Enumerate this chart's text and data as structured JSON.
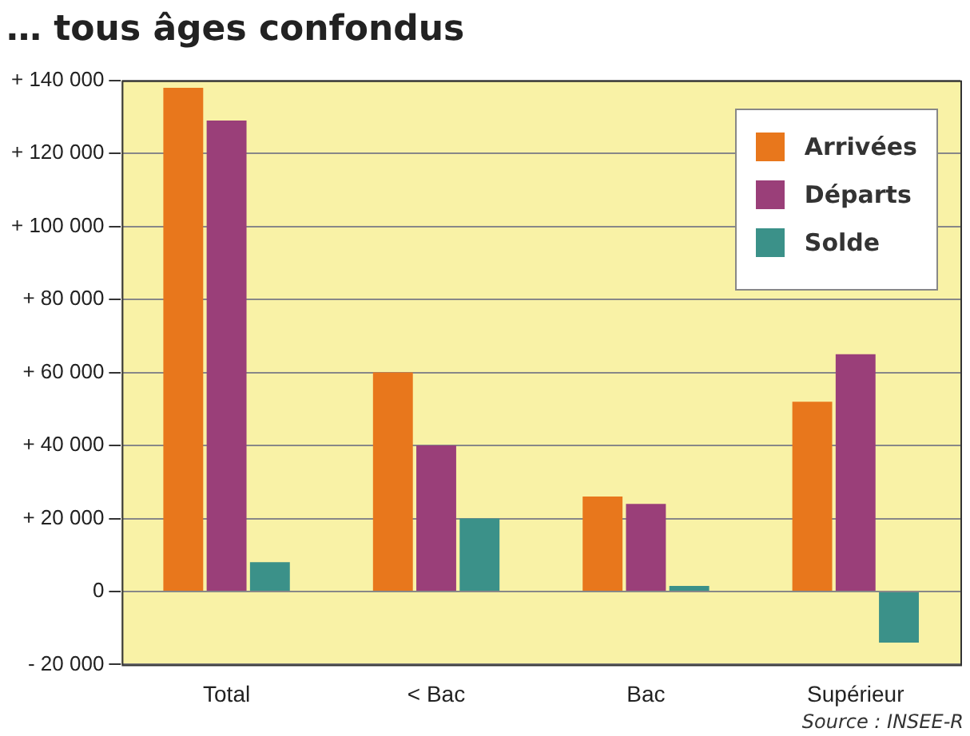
{
  "chart_data": {
    "type": "bar",
    "title": "… tous âges confondus",
    "categories": [
      "Total",
      "< Bac",
      "Bac",
      "Supérieur"
    ],
    "series": [
      {
        "name": "Arrivées",
        "color": "#e8771c",
        "values": [
          138000,
          60000,
          26000,
          52000
        ]
      },
      {
        "name": "Départs",
        "color": "#9a3f79",
        "values": [
          129000,
          40000,
          24000,
          65000
        ]
      },
      {
        "name": "Solde",
        "color": "#3b9189",
        "values": [
          8000,
          20000,
          1500,
          -14000
        ]
      }
    ],
    "ylim": [
      -20000,
      140000
    ],
    "yticks": [
      {
        "value": -20000,
        "label": "- 20 000"
      },
      0,
      {
        "value": 20000,
        "label": "+ 20 000"
      },
      {
        "value": 40000,
        "label": "+ 40 000"
      },
      {
        "value": 60000,
        "label": "+ 60 000"
      },
      {
        "value": 80000,
        "label": "+ 80 000"
      },
      {
        "value": 100000,
        "label": "+ 100 000"
      },
      {
        "value": 120000,
        "label": "+ 120 000"
      },
      {
        "value": 140000,
        "label": "+ 140 000"
      }
    ],
    "grid": "y",
    "legend": "top right",
    "annotations": [
      "Source : INSEE-R"
    ]
  }
}
